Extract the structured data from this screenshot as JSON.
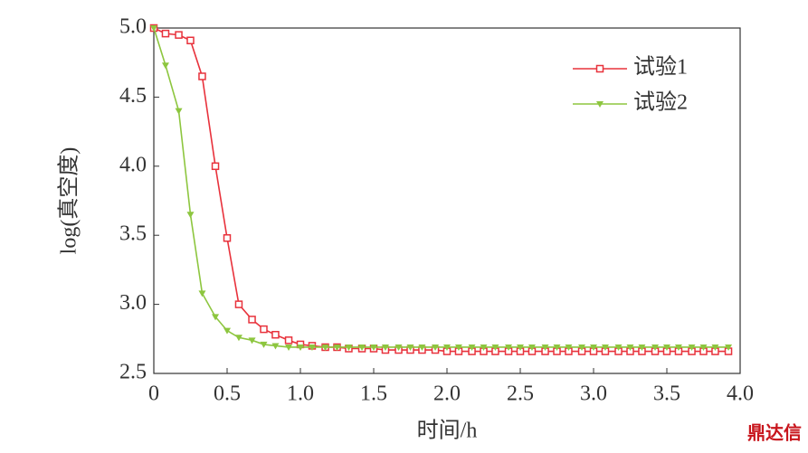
{
  "chart_data": {
    "type": "line",
    "xlabel": "时间/h",
    "ylabel": "log(真空度)",
    "x": [
      0,
      0.08,
      0.17,
      0.25,
      0.33,
      0.42,
      0.5,
      0.58,
      0.67,
      0.75,
      0.83,
      0.92,
      1,
      1.08,
      1.17,
      1.25,
      1.33,
      1.42,
      1.5,
      1.58,
      1.67,
      1.75,
      1.83,
      1.92,
      2,
      2.08,
      2.17,
      2.25,
      2.33,
      2.42,
      2.5,
      2.58,
      2.67,
      2.75,
      2.83,
      2.92,
      3,
      3.08,
      3.17,
      3.25,
      3.33,
      3.42,
      3.5,
      3.58,
      3.67,
      3.75,
      3.83,
      3.92
    ],
    "series": [
      {
        "name": "试验1",
        "color": "#e8323c",
        "marker": "square",
        "values": [
          5.0,
          4.96,
          4.95,
          4.91,
          4.65,
          4.0,
          3.48,
          3.0,
          2.89,
          2.82,
          2.78,
          2.74,
          2.71,
          2.7,
          2.69,
          2.69,
          2.68,
          2.68,
          2.68,
          2.67,
          2.67,
          2.67,
          2.67,
          2.67,
          2.66,
          2.66,
          2.66,
          2.66,
          2.66,
          2.66,
          2.66,
          2.66,
          2.66,
          2.66,
          2.66,
          2.66,
          2.66,
          2.66,
          2.66,
          2.66,
          2.66,
          2.66,
          2.66,
          2.66,
          2.66,
          2.66,
          2.66,
          2.66
        ]
      },
      {
        "name": "试验2",
        "color": "#8dc63f",
        "marker": "triangle-down",
        "values": [
          5.0,
          4.73,
          4.4,
          3.65,
          3.08,
          2.91,
          2.81,
          2.76,
          2.74,
          2.71,
          2.7,
          2.69,
          2.69,
          2.69,
          2.69,
          2.69,
          2.69,
          2.69,
          2.69,
          2.69,
          2.69,
          2.69,
          2.69,
          2.69,
          2.69,
          2.69,
          2.69,
          2.69,
          2.69,
          2.69,
          2.69,
          2.69,
          2.69,
          2.69,
          2.69,
          2.69,
          2.69,
          2.69,
          2.69,
          2.69,
          2.69,
          2.69,
          2.69,
          2.69,
          2.69,
          2.69,
          2.69,
          2.69
        ]
      }
    ],
    "xlim": [
      0,
      4.0
    ],
    "xticks": [
      0,
      0.5,
      {
        "value": 1,
        "label": "1.0"
      },
      1.5,
      {
        "value": 2,
        "label": "2.0"
      },
      2.5,
      {
        "value": 3,
        "label": "3.0"
      },
      3.5,
      {
        "value": 4,
        "label": "4.0"
      }
    ],
    "ylim": [
      2.5,
      5.0
    ],
    "yticks": [
      2.5,
      {
        "value": 3,
        "label": "3.0"
      },
      3.5,
      {
        "value": 4,
        "label": "4.0"
      },
      4.5,
      {
        "value": 5,
        "label": "5.0"
      }
    ],
    "legend": "upper right",
    "watermark": "鼎达信"
  }
}
